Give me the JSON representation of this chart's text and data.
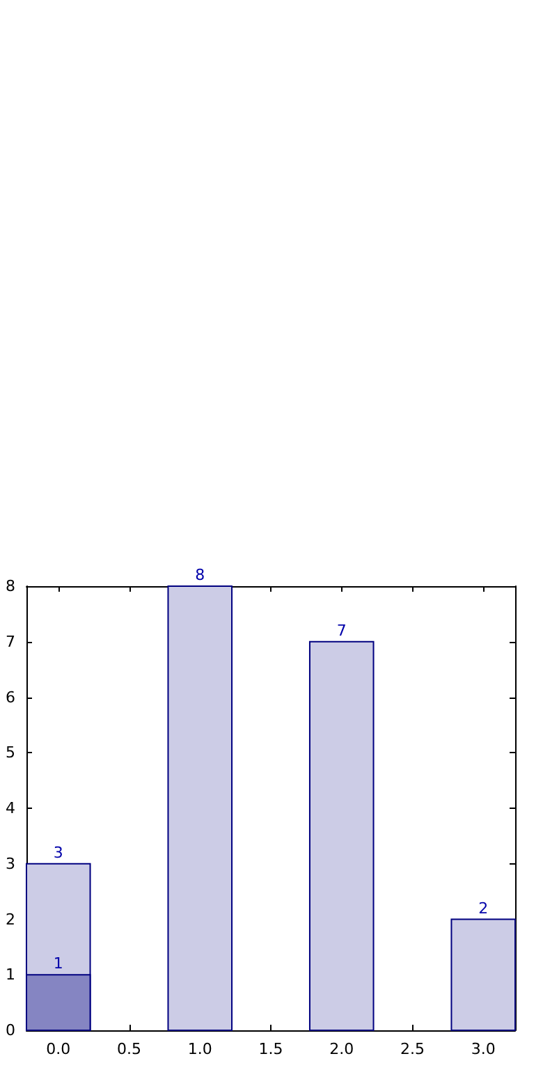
{
  "chart_data": {
    "type": "bar",
    "x": [
      0,
      1,
      2,
      3
    ],
    "series": [
      {
        "color": "#cccce6",
        "values": [
          3,
          8,
          7,
          2
        ]
      },
      {
        "color": "#8585c2",
        "values": [
          1,
          null,
          null,
          null
        ]
      }
    ],
    "data_labels": true,
    "xlim": [
      -0.225,
      3.225
    ],
    "xticks": [
      {
        "value": 0,
        "label": "0.0"
      },
      {
        "value": 0.5,
        "label": "0.5"
      },
      {
        "value": 1,
        "label": "1.0"
      },
      {
        "value": 1.5,
        "label": "1.5"
      },
      {
        "value": 2,
        "label": "2.0"
      },
      {
        "value": 2.5,
        "label": "2.5"
      },
      {
        "value": 3,
        "label": "3.0"
      }
    ],
    "ylim": [
      0,
      8
    ],
    "yticks": [
      0,
      1,
      2,
      3,
      4,
      5,
      6,
      7,
      8
    ]
  }
}
